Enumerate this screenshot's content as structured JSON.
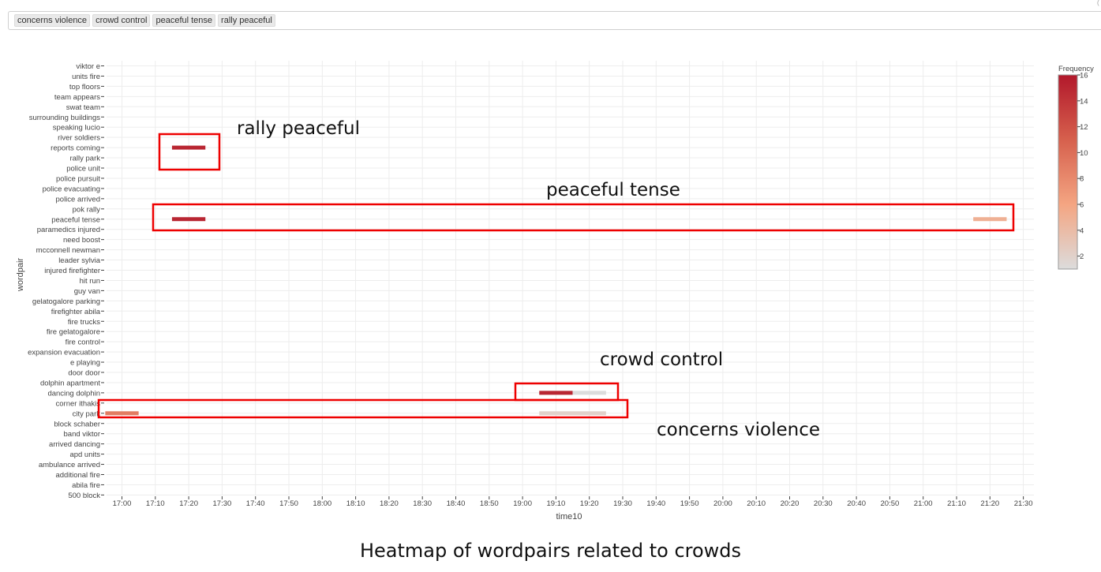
{
  "filter_chips": [
    "concerns violence",
    "crowd control",
    "peaceful tense",
    "rally peaceful"
  ],
  "corner_mark": "(",
  "caption": "Heatmap of wordpairs related to crowds",
  "colorbar": {
    "title": "Frequency",
    "ticks": [
      2,
      4,
      6,
      8,
      10,
      12,
      14,
      16
    ],
    "range": [
      1,
      16
    ],
    "colors": [
      "#dcdcdc",
      "#f4a582",
      "#d6604d",
      "#b2182b"
    ]
  },
  "annotations": [
    {
      "label": "rally peaceful"
    },
    {
      "label": "peaceful tense"
    },
    {
      "label": "crowd control"
    },
    {
      "label": "concerns violence"
    }
  ],
  "highlight_color": "#ee0000",
  "chart_data": {
    "type": "heatmap",
    "title": "",
    "xlabel": "time10",
    "ylabel": "wordpair",
    "grid": true,
    "x_ticks": [
      "17:00",
      "17:10",
      "17:20",
      "17:30",
      "17:40",
      "17:50",
      "18:00",
      "18:10",
      "18:20",
      "18:30",
      "18:40",
      "18:50",
      "19:00",
      "19:10",
      "19:20",
      "19:30",
      "19:40",
      "19:50",
      "20:00",
      "20:10",
      "20:20",
      "20:30",
      "20:40",
      "20:50",
      "21:00",
      "21:10",
      "21:20",
      "21:30"
    ],
    "y_categories": [
      "viktor e",
      "units fire",
      "top floors",
      "team appears",
      "swat team",
      "surrounding buildings",
      "speaking lucio",
      "river soldiers",
      "reports coming",
      "rally park",
      "police unit",
      "police pursuit",
      "police evacuating",
      "police arrived",
      "pok rally",
      "peaceful tense",
      "paramedics injured",
      "need boost",
      "mcconnell newman",
      "leader sylvia",
      "injured firefighter",
      "hit run",
      "guy van",
      "gelatogalore parking",
      "firefighter abila",
      "fire trucks",
      "fire gelatogalore",
      "fire control",
      "expansion evacuation",
      "e playing",
      "door door",
      "dolphin apartment",
      "dancing dolphin",
      "corner ithakis",
      "city park",
      "block schaber",
      "band viktor",
      "arrived dancing",
      "apd units",
      "ambulance arrived",
      "additional fire",
      "abila fire",
      "500 block"
    ],
    "cells": [
      {
        "y": "reports coming",
        "x_start": "17:15",
        "x_end": "17:25",
        "value": 15
      },
      {
        "y": "peaceful tense",
        "x_start": "17:15",
        "x_end": "17:25",
        "value": 15
      },
      {
        "y": "peaceful tense",
        "x_start": "21:15",
        "x_end": "21:25",
        "value": 5
      },
      {
        "y": "dancing dolphin",
        "x_start": "19:05",
        "x_end": "19:15",
        "value": 15
      },
      {
        "y": "dancing dolphin",
        "x_start": "19:15",
        "x_end": "19:25",
        "value": 1
      },
      {
        "y": "city park",
        "x_start": "16:55",
        "x_end": "17:05",
        "value": 9
      },
      {
        "y": "city park",
        "x_start": "19:05",
        "x_end": "19:25",
        "value": 2
      }
    ]
  }
}
